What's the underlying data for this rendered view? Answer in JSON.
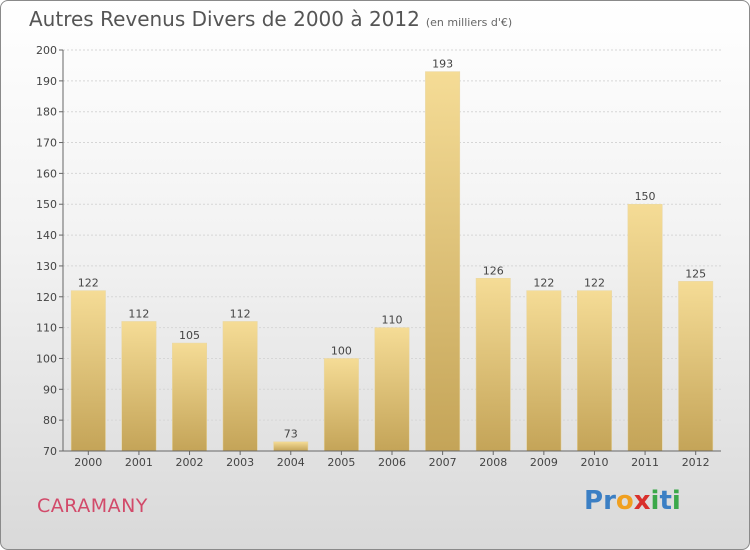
{
  "title": "Autres Revenus Divers de 2000 à 2012",
  "subtitle": "(en milliers d'€)",
  "town": "CARAMANY",
  "logo": {
    "letters": [
      "P",
      "r",
      "o",
      "x",
      "i",
      "t",
      "i"
    ],
    "colors": [
      "#3b7fc4",
      "#3b7fc4",
      "#f0a020",
      "#d9302c",
      "#3ba84a",
      "#3b7fc4",
      "#3ba84a"
    ]
  },
  "chart_data": {
    "type": "bar",
    "categories": [
      "2000",
      "2001",
      "2002",
      "2003",
      "2004",
      "2005",
      "2006",
      "2007",
      "2008",
      "2009",
      "2010",
      "2011",
      "2012"
    ],
    "values": [
      122,
      112,
      105,
      112,
      73,
      100,
      110,
      193,
      126,
      122,
      122,
      150,
      125
    ],
    "ylim": [
      70,
      200
    ],
    "yticks": [
      70,
      80,
      90,
      100,
      110,
      120,
      130,
      140,
      150,
      160,
      170,
      180,
      190,
      200
    ],
    "grid": true,
    "bar_color_top": "#f5dc96",
    "bar_color_bottom": "#c4a458"
  }
}
